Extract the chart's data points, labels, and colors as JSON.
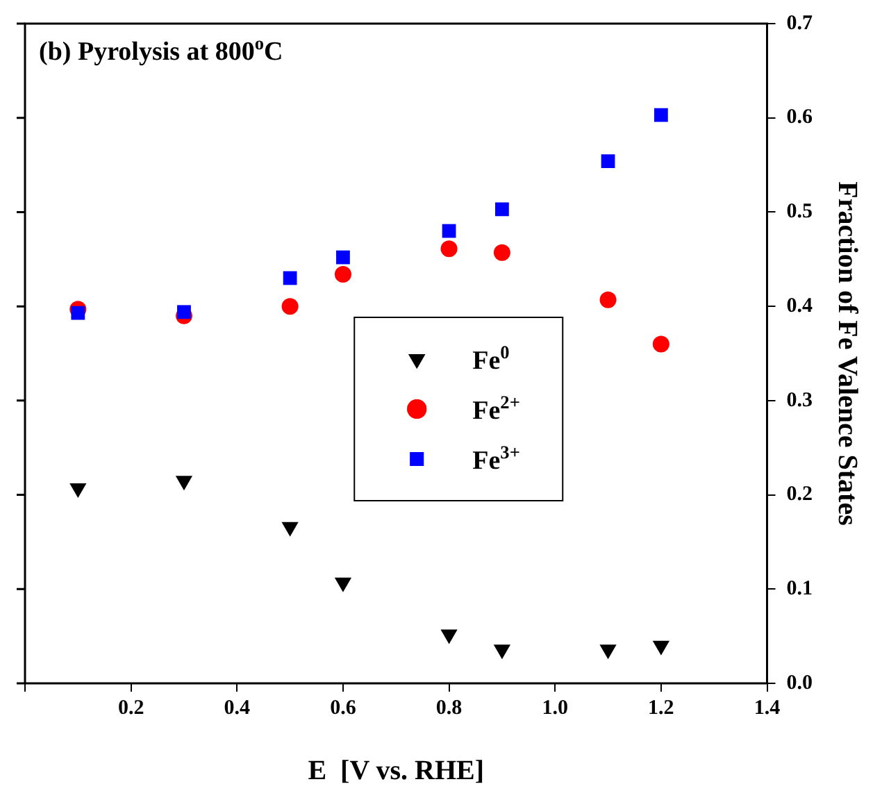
{
  "chart_data": {
    "type": "scatter",
    "title": "(b) Pyrolysis at 800$^{o}$C",
    "xlabel": "E  [V vs. RHE]",
    "ylabel": "Fraction of Fe Valence States",
    "x": [
      0.1,
      0.3,
      0.5,
      0.6,
      0.8,
      0.9,
      1.1,
      1.2
    ],
    "series": [
      {
        "name": "Fe$^{0}$",
        "color": "#000000",
        "marker": "triangle",
        "values": [
          0.207,
          0.215,
          0.166,
          0.107,
          0.052,
          0.036,
          0.036,
          0.04
        ]
      },
      {
        "name": "Fe$^{2+}$",
        "color": "#ff0000",
        "marker": "circle",
        "values": [
          0.397,
          0.39,
          0.4,
          0.434,
          0.461,
          0.457,
          0.407,
          0.36
        ]
      },
      {
        "name": "Fe$^{3+}$",
        "color": "#0000ff",
        "marker": "square",
        "values": [
          0.393,
          0.394,
          0.43,
          0.452,
          0.48,
          0.503,
          0.554,
          0.603
        ]
      }
    ],
    "xlim": [
      0,
      1.4
    ],
    "xticks": [
      {
        "value": 0,
        "label": null
      },
      {
        "value": 0.2,
        "label": "0.2"
      },
      {
        "value": 0.4,
        "label": "0.4"
      },
      {
        "value": 0.6,
        "label": "0.6"
      },
      {
        "value": 0.8,
        "label": "0.8"
      },
      {
        "value": 1,
        "label": "1.0"
      },
      {
        "value": 1.2,
        "label": "1.2"
      },
      {
        "value": 1.4,
        "label": "1.4"
      }
    ],
    "ylim": [
      0,
      0.7
    ],
    "yticks": [
      {
        "value": 0,
        "label": "0.0"
      },
      0.1,
      0.2,
      0.3,
      0.4,
      0.5,
      0.6,
      0.7
    ],
    "grid": false,
    "legend": "center"
  }
}
